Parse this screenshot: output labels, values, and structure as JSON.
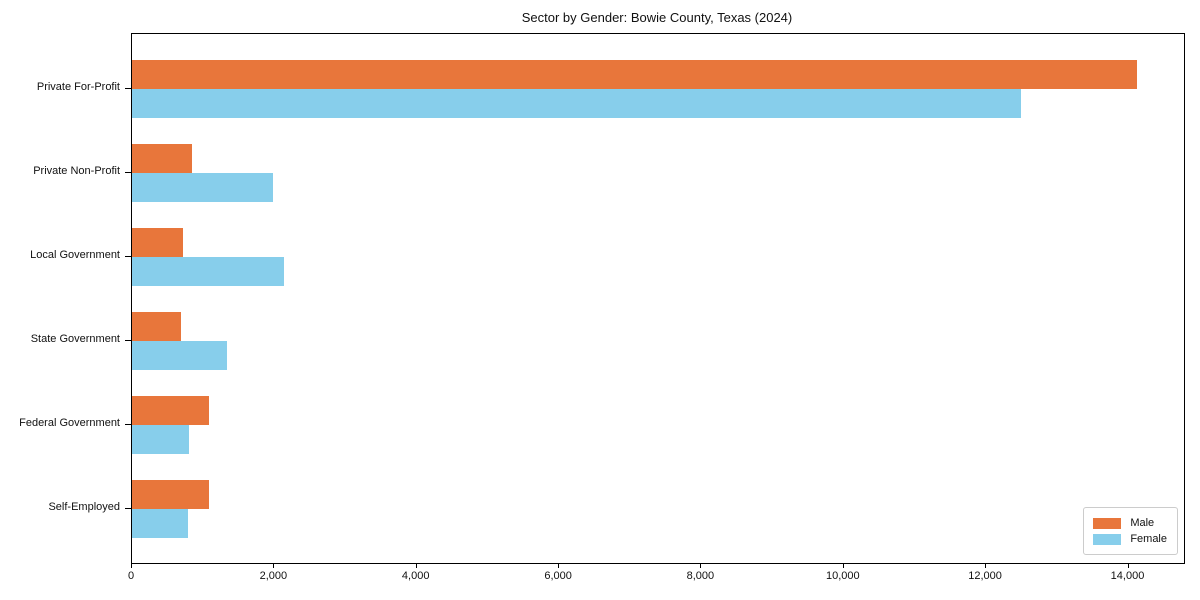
{
  "title": "Sector by Gender: Bowie County, Texas (2024)",
  "chart_data": {
    "type": "bar",
    "orientation": "horizontal",
    "title": "Sector by Gender: Bowie County, Texas (2024)",
    "categories": [
      "Private For-Profit",
      "Private Non-Profit",
      "Local Government",
      "State Government",
      "Federal Government",
      "Self-Employed"
    ],
    "series": [
      {
        "name": "Male",
        "color": "#e8763b",
        "values": [
          14120,
          845,
          715,
          690,
          1080,
          1075
        ]
      },
      {
        "name": "Female",
        "color": "#87ceeb",
        "values": [
          12490,
          1980,
          2135,
          1335,
          800,
          790
        ]
      }
    ],
    "xlim": [
      0,
      14780
    ],
    "xticks": [
      0,
      2000,
      4000,
      6000,
      8000,
      10000,
      12000,
      14000
    ],
    "xtick_labels": [
      "0",
      "2,000",
      "4,000",
      "6,000",
      "8,000",
      "10,000",
      "12,000",
      "14,000"
    ],
    "xlabel": "",
    "ylabel": "",
    "grid": false,
    "legend": {
      "position": "lower right",
      "entries": [
        "Male",
        "Female"
      ]
    }
  }
}
